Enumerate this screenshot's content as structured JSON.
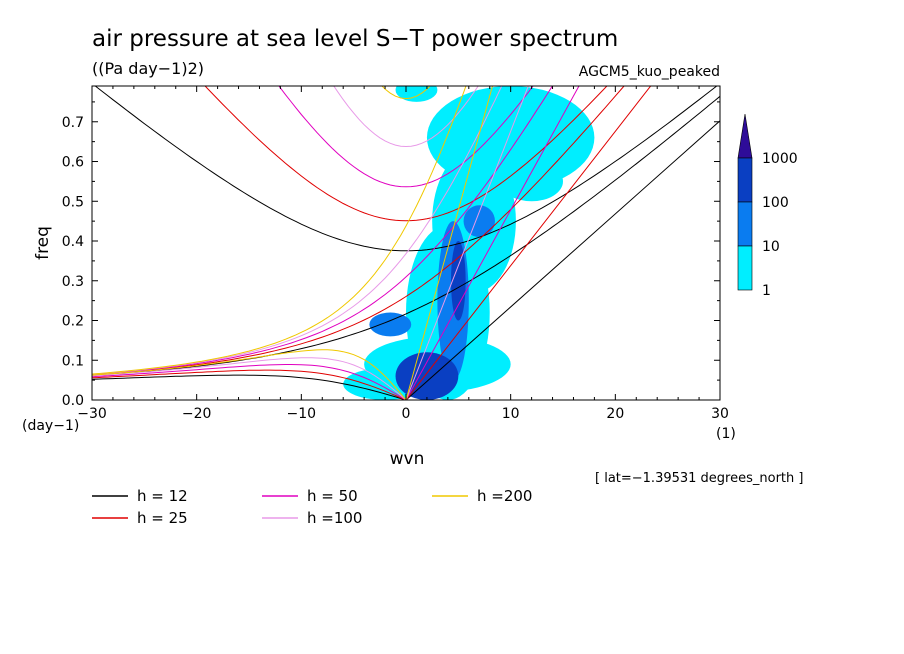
{
  "chart_data": {
    "type": "heatmap",
    "title": "air pressure at sea level S−T power spectrum",
    "units": "((Pa day−1)2)",
    "model": "AGCM5_kuo_peaked",
    "xlabel": "wvn",
    "ylabel": "freq",
    "x_unit": "(1)",
    "y_unit": "(day−1)",
    "xlim": [
      -30,
      30
    ],
    "ylim": [
      0,
      0.79
    ],
    "x_ticks": [
      "−30",
      "−20",
      "−10",
      "0",
      "10",
      "20",
      "30"
    ],
    "y_ticks": [
      "0.0",
      "0.1",
      "0.2",
      "0.3",
      "0.4",
      "0.5",
      "0.6",
      "0.7"
    ],
    "annotation": "[ lat=−1.39531 degrees_north ]",
    "colorbar": {
      "levels": [
        "1",
        "10",
        "100",
        "1000"
      ],
      "colors": [
        "#00eeff",
        "#0a7cf0",
        "#0a3fc2",
        "#2e0c98"
      ]
    },
    "dispersion_curves": [
      {
        "label": "h = 12",
        "h": 12,
        "color": "#000000"
      },
      {
        "label": "h = 25",
        "h": 25,
        "color": "#e00000"
      },
      {
        "label": "h = 50",
        "h": 50,
        "color": "#e000c0"
      },
      {
        "label": "h =100",
        "h": 100,
        "color": "#e89ae8"
      },
      {
        "label": "h =200",
        "h": 200,
        "color": "#f0c800"
      }
    ],
    "spectral_blobs": [
      {
        "x": 2.0,
        "y": 0.06,
        "rx": 3.0,
        "ry": 0.06,
        "level": 3
      },
      {
        "x": 4.5,
        "y": 0.25,
        "rx": 1.5,
        "ry": 0.2,
        "level": 2
      },
      {
        "x": 5.0,
        "y": 0.3,
        "rx": 0.7,
        "ry": 0.1,
        "level": 3
      },
      {
        "x": 4.0,
        "y": 0.22,
        "rx": 4.0,
        "ry": 0.22,
        "level": 1
      },
      {
        "x": 3.0,
        "y": 0.09,
        "rx": 7.0,
        "ry": 0.07,
        "level": 1
      },
      {
        "x": 6.5,
        "y": 0.45,
        "rx": 4.0,
        "ry": 0.18,
        "level": 1
      },
      {
        "x": 7.0,
        "y": 0.45,
        "rx": 1.5,
        "ry": 0.04,
        "level": 2
      },
      {
        "x": 10.0,
        "y": 0.66,
        "rx": 8.0,
        "ry": 0.13,
        "level": 1
      },
      {
        "x": 12.0,
        "y": 0.55,
        "rx": 3.0,
        "ry": 0.05,
        "level": 1
      },
      {
        "x": -2.0,
        "y": 0.04,
        "rx": 4.0,
        "ry": 0.04,
        "level": 1
      },
      {
        "x": -1.5,
        "y": 0.19,
        "rx": 2.0,
        "ry": 0.03,
        "level": 2
      },
      {
        "x": 1.0,
        "y": 0.78,
        "rx": 2.0,
        "ry": 0.03,
        "level": 1
      }
    ]
  }
}
